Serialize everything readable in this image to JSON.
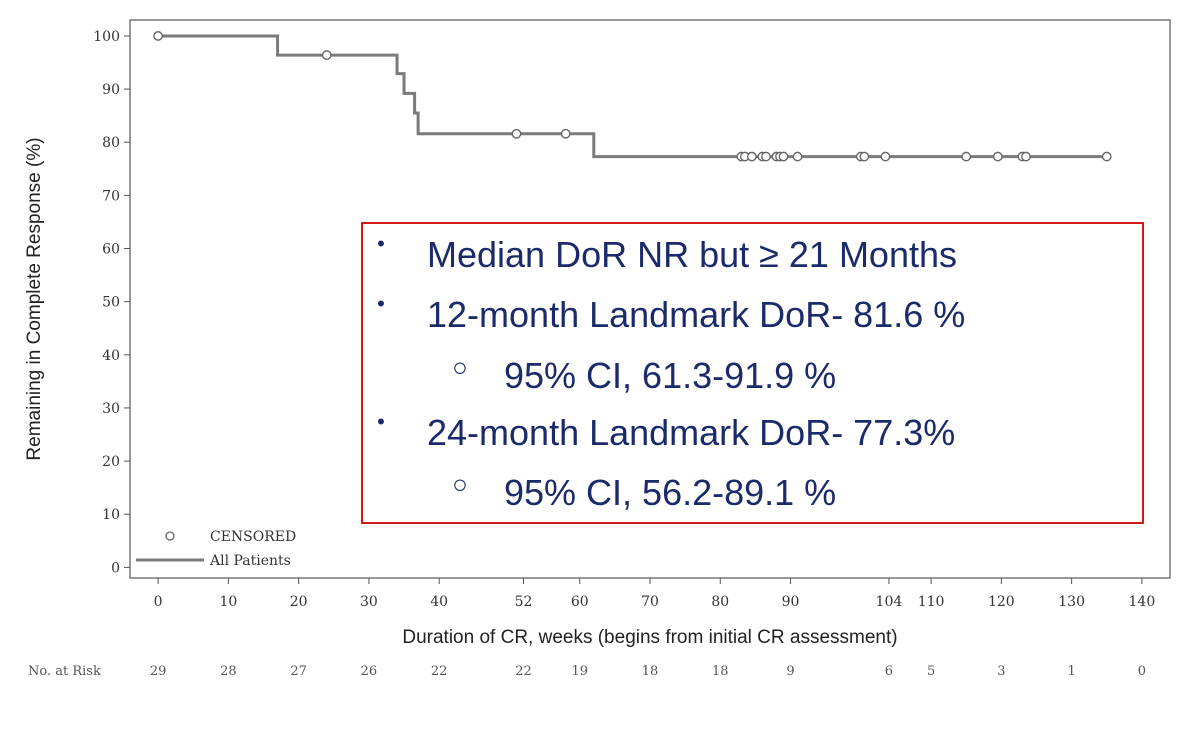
{
  "chart_data": {
    "type": "line",
    "subtype": "kaplan-meier",
    "title": "",
    "xlabel": "Duration of CR, weeks (begins from initial CR assessment)",
    "ylabel": "Remaining in Complete Response (%)",
    "xlim": [
      -4,
      144
    ],
    "ylim": [
      -2,
      103
    ],
    "xticks": [
      0,
      10,
      20,
      30,
      40,
      52,
      60,
      70,
      80,
      90,
      104,
      110,
      120,
      130,
      140
    ],
    "yticks": [
      0,
      10,
      20,
      30,
      40,
      50,
      60,
      70,
      80,
      90,
      100
    ],
    "grid": false,
    "legend": {
      "placement": "bottom-left",
      "censored_label": "CENSORED",
      "series_label": "All Patients"
    },
    "series": [
      {
        "name": "All Patients",
        "color": "#7a7a7a",
        "steps": [
          [
            0,
            100
          ],
          [
            17,
            96.4
          ],
          [
            34,
            92.9
          ],
          [
            35,
            89.2
          ],
          [
            36.5,
            85.5
          ],
          [
            37,
            81.6
          ],
          [
            62,
            77.3
          ],
          [
            135,
            77.3
          ]
        ],
        "censored": [
          [
            0,
            100
          ],
          [
            24,
            96.4
          ],
          [
            51,
            81.6
          ],
          [
            58,
            81.6
          ],
          [
            83,
            77.3
          ],
          [
            83.5,
            77.3
          ],
          [
            84.5,
            77.3
          ],
          [
            86,
            77.3
          ],
          [
            86.5,
            77.3
          ],
          [
            88,
            77.3
          ],
          [
            88.5,
            77.3
          ],
          [
            89,
            77.3
          ],
          [
            91,
            77.3
          ],
          [
            100,
            77.3
          ],
          [
            100.5,
            77.3
          ],
          [
            103.5,
            77.3
          ],
          [
            115,
            77.3
          ],
          [
            119.5,
            77.3
          ],
          [
            123,
            77.3
          ],
          [
            123.5,
            77.3
          ],
          [
            135,
            77.3
          ]
        ]
      }
    ],
    "risk_table": {
      "label": "No. at Risk",
      "values": [
        "29",
        "28",
        "27",
        "26",
        "22",
        "22",
        "19",
        "18",
        "18",
        "9",
        "6",
        "5",
        "3",
        "1",
        "0"
      ]
    },
    "annotation": {
      "border_color": "#cc0000",
      "items": [
        {
          "level": 1,
          "bullet": "•",
          "text": "Median DoR NR but ≥ 21 Months"
        },
        {
          "level": 1,
          "bullet": "•",
          "text": "12-month Landmark DoR- 81.6 %"
        },
        {
          "level": 2,
          "bullet": "○",
          "text": "95% CI, 61.3-91.9 %"
        },
        {
          "level": 1,
          "bullet": "•",
          "text": "24-month Landmark DoR- 77.3%"
        },
        {
          "level": 2,
          "bullet": "○",
          "text": "95% CI, 56.2-89.1 %"
        }
      ]
    }
  }
}
